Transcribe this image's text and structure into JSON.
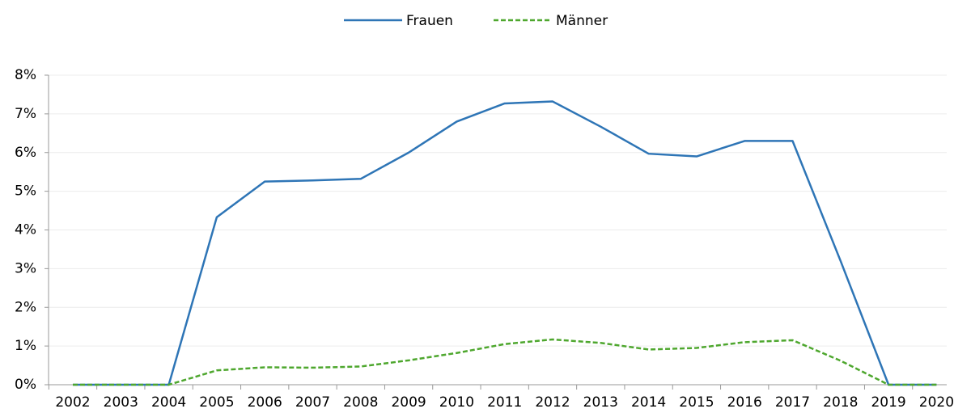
{
  "chart_data": {
    "type": "line",
    "categories": [
      "2002",
      "2003",
      "2004",
      "2005",
      "2006",
      "2007",
      "2008",
      "2009",
      "2010",
      "2011",
      "2012",
      "2013",
      "2014",
      "2015",
      "2016",
      "2017",
      "2018",
      "2019",
      "2020"
    ],
    "series": [
      {
        "name": "Frauen",
        "color": "#2e75b6",
        "dash": false,
        "values": [
          0,
          0,
          0,
          4.33,
          5.25,
          5.28,
          5.32,
          6.0,
          6.8,
          7.27,
          7.32,
          6.67,
          5.97,
          5.9,
          6.3,
          6.3,
          3.2,
          0,
          0
        ]
      },
      {
        "name": "Männer",
        "color": "#4ea72e",
        "dash": true,
        "values": [
          0,
          0,
          0,
          0.37,
          0.45,
          0.44,
          0.47,
          0.63,
          0.82,
          1.05,
          1.17,
          1.08,
          0.91,
          0.95,
          1.1,
          1.15,
          0.62,
          0,
          0
        ]
      }
    ],
    "ylim": [
      0,
      8
    ],
    "yticks": [
      {
        "value": 0,
        "label": "0%"
      },
      {
        "value": 1,
        "label": "1%"
      },
      {
        "value": 2,
        "label": "2%"
      },
      {
        "value": 3,
        "label": "3%"
      },
      {
        "value": 4,
        "label": "4%"
      },
      {
        "value": 5,
        "label": "5%"
      },
      {
        "value": 6,
        "label": "6%"
      },
      {
        "value": 7,
        "label": "7%"
      },
      {
        "value": 8,
        "label": "8%"
      }
    ],
    "grid": true,
    "legend": "top"
  }
}
